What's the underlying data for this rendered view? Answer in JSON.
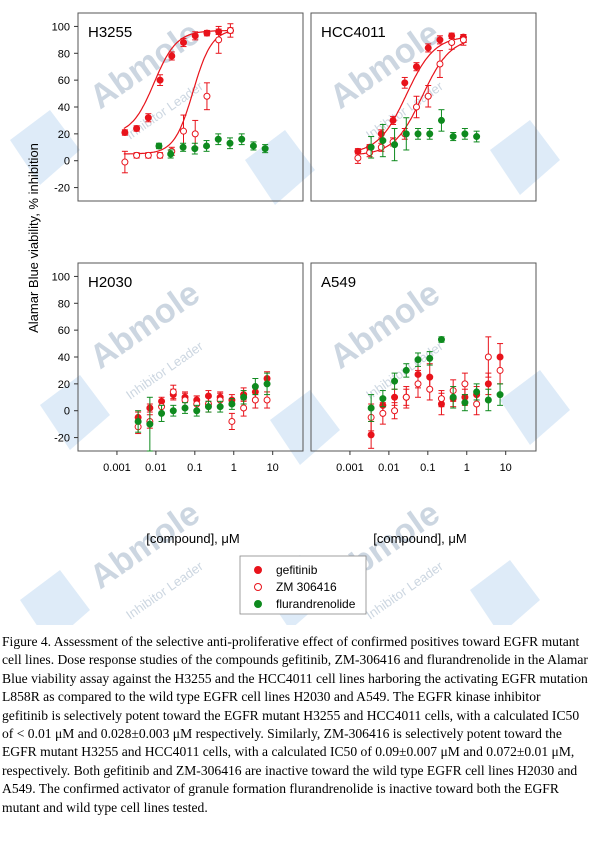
{
  "watermark": {
    "brand": "Abmole",
    "tagline": "Inhibitor Leader"
  },
  "colors": {
    "gefitinib": "#e8131b",
    "zm306416": "#e8131b",
    "flurandrenolide": "#0e8a1e",
    "fit": "#e8131b",
    "watermark": "#4a90d9"
  },
  "figure": {
    "ylabel": "Alamar Blue viability, % inhibition",
    "xlabel": "[compound], μM",
    "x_ticks": [
      "0.001",
      "0.01",
      "0.1",
      "1",
      "10"
    ],
    "y_ticks": [
      "-20",
      "0",
      "20",
      "40",
      "60",
      "80",
      "100"
    ],
    "legend": [
      {
        "label": "gefitinib",
        "marker": "filled"
      },
      {
        "label": "ZM 306416",
        "marker": "open"
      },
      {
        "label": "flurandrenolide",
        "marker": "filled-green"
      }
    ]
  },
  "chart_data": [
    {
      "type": "scatter",
      "title": "H3255",
      "xscale": "log",
      "xlim": [
        0.0001,
        60
      ],
      "ylim": [
        -30,
        110
      ],
      "series": [
        {
          "name": "gefitinib",
          "style": "filled",
          "color": "#e8131b",
          "x": [
            0.0016,
            0.0032,
            0.0064,
            0.0128,
            0.0256,
            0.0512,
            0.1024,
            0.2048,
            0.4096,
            0.8192
          ],
          "y": [
            21,
            24,
            32,
            60,
            78,
            88,
            93,
            95,
            96,
            97
          ],
          "err": [
            2,
            2,
            3,
            4,
            3,
            3,
            3,
            2,
            2,
            2
          ]
        },
        {
          "name": "ZM 306416",
          "style": "open",
          "color": "#e8131b",
          "x": [
            0.0016,
            0.0032,
            0.0064,
            0.0128,
            0.0256,
            0.0512,
            0.1024,
            0.2048,
            0.4096,
            0.8192
          ],
          "y": [
            -1,
            4,
            4,
            4,
            7,
            22,
            20,
            48,
            90,
            97
          ],
          "err": [
            8,
            2,
            2,
            2,
            3,
            12,
            10,
            10,
            10,
            5
          ]
        },
        {
          "name": "flurandrenolide",
          "style": "filled",
          "color": "#0e8a1e",
          "x": [
            0.012,
            0.024,
            0.05,
            0.1,
            0.2,
            0.4,
            0.8,
            1.6,
            3.2,
            6.4
          ],
          "y": [
            11,
            5,
            10,
            9,
            11,
            16,
            13,
            16,
            11,
            9
          ],
          "err": [
            2,
            3,
            3,
            4,
            4,
            4,
            4,
            4,
            3,
            3
          ]
        }
      ],
      "fits": [
        {
          "series": "gefitinib",
          "bottom": 19,
          "top": 97,
          "ic50": 0.009,
          "hill": 1.5
        },
        {
          "series": "ZM 306416",
          "bottom": 5,
          "top": 98,
          "ic50": 0.09,
          "hill": 1.8
        }
      ]
    },
    {
      "type": "scatter",
      "title": "HCC4011",
      "xscale": "log",
      "xlim": [
        0.0001,
        60
      ],
      "ylim": [
        -30,
        110
      ],
      "series": [
        {
          "name": "gefitinib",
          "style": "filled",
          "color": "#e8131b",
          "x": [
            0.0016,
            0.0032,
            0.0064,
            0.0128,
            0.0256,
            0.0512,
            0.1024,
            0.2048,
            0.4096,
            0.8192
          ],
          "y": [
            7,
            10,
            20,
            30,
            58,
            70,
            84,
            90,
            93,
            92
          ],
          "err": [
            2,
            2,
            3,
            3,
            4,
            3,
            3,
            3,
            2,
            2
          ]
        },
        {
          "name": "ZM 306416",
          "style": "open",
          "color": "#e8131b",
          "x": [
            0.0016,
            0.0032,
            0.0064,
            0.0128,
            0.0256,
            0.0512,
            0.1024,
            0.2048,
            0.4096,
            0.8192
          ],
          "y": [
            2,
            6,
            10,
            14,
            20,
            40,
            48,
            72,
            88,
            90
          ],
          "err": [
            4,
            3,
            3,
            3,
            4,
            8,
            8,
            10,
            5,
            4
          ]
        },
        {
          "name": "flurandrenolide",
          "style": "filled",
          "color": "#0e8a1e",
          "x": [
            0.0035,
            0.007,
            0.014,
            0.028,
            0.056,
            0.112,
            0.224,
            0.448,
            0.896,
            1.792
          ],
          "y": [
            10,
            15,
            12,
            20,
            20,
            20,
            30,
            18,
            20,
            18
          ],
          "err": [
            8,
            12,
            12,
            12,
            4,
            4,
            8,
            3,
            4,
            4
          ]
        }
      ],
      "fits": [
        {
          "series": "gefitinib",
          "bottom": 5,
          "top": 93,
          "ic50": 0.028,
          "hill": 1.2
        },
        {
          "series": "ZM 306416",
          "bottom": 4,
          "top": 92,
          "ic50": 0.072,
          "hill": 1.2
        }
      ]
    },
    {
      "type": "scatter",
      "title": "H2030",
      "xscale": "log",
      "xlim": [
        0.0001,
        60
      ],
      "ylim": [
        -30,
        110
      ],
      "series": [
        {
          "name": "gefitinib",
          "style": "filled",
          "color": "#e8131b",
          "x": [
            0.0035,
            0.007,
            0.014,
            0.028,
            0.056,
            0.112,
            0.224,
            0.448,
            0.896,
            1.792,
            3.584,
            7.168
          ],
          "y": [
            -5,
            2,
            7,
            12,
            10,
            8,
            11,
            10,
            8,
            12,
            14,
            24
          ],
          "err": [
            4,
            3,
            3,
            4,
            3,
            3,
            4,
            3,
            4,
            5,
            5,
            5
          ]
        },
        {
          "name": "ZM 306416",
          "style": "open",
          "color": "#e8131b",
          "x": [
            0.0035,
            0.007,
            0.014,
            0.028,
            0.056,
            0.112,
            0.224,
            0.448,
            0.896,
            1.792,
            3.584,
            7.168
          ],
          "y": [
            -12,
            -8,
            3,
            14,
            8,
            5,
            5,
            8,
            -8,
            2,
            8,
            8
          ],
          "err": [
            5,
            5,
            5,
            5,
            6,
            6,
            6,
            6,
            6,
            6,
            6,
            6
          ]
        },
        {
          "name": "flurandrenolide",
          "style": "filled",
          "color": "#0e8a1e",
          "x": [
            0.0035,
            0.007,
            0.014,
            0.028,
            0.056,
            0.112,
            0.224,
            0.448,
            0.896,
            1.792,
            3.584,
            7.168
          ],
          "y": [
            -8,
            -10,
            -2,
            0,
            2,
            0,
            3,
            3,
            5,
            10,
            18,
            20
          ],
          "err": [
            8,
            20,
            6,
            4,
            4,
            4,
            4,
            4,
            4,
            5,
            6,
            8
          ]
        }
      ]
    },
    {
      "type": "scatter",
      "title": "A549",
      "xscale": "log",
      "xlim": [
        0.0001,
        60
      ],
      "ylim": [
        -30,
        110
      ],
      "series": [
        {
          "name": "gefitinib",
          "style": "filled",
          "color": "#e8131b",
          "x": [
            0.0035,
            0.007,
            0.014,
            0.028,
            0.056,
            0.112,
            0.224,
            0.448,
            0.896,
            1.792,
            3.584,
            7.168
          ],
          "y": [
            -18,
            4,
            10,
            10,
            27,
            25,
            5,
            9,
            10,
            12,
            20,
            40
          ],
          "err": [
            10,
            6,
            6,
            6,
            10,
            10,
            8,
            6,
            6,
            6,
            8,
            10
          ]
        },
        {
          "name": "ZM 306416",
          "style": "open",
          "color": "#e8131b",
          "x": [
            0.0035,
            0.007,
            0.014,
            0.028,
            0.056,
            0.112,
            0.224,
            0.448,
            0.896,
            1.792,
            3.584,
            7.168
          ],
          "y": [
            -5,
            -2,
            0,
            10,
            20,
            16,
            9,
            15,
            20,
            5,
            40,
            30
          ],
          "err": [
            10,
            8,
            6,
            8,
            10,
            8,
            6,
            8,
            8,
            8,
            15,
            10
          ]
        },
        {
          "name": "flurandrenolide",
          "style": "filled",
          "color": "#0e8a1e",
          "x": [
            0.0035,
            0.007,
            0.014,
            0.028,
            0.056,
            0.112,
            0.224,
            0.448,
            0.896,
            1.792,
            3.584,
            7.168
          ],
          "y": [
            2,
            9,
            22,
            30,
            38,
            39,
            53,
            10,
            6,
            14,
            8,
            12
          ],
          "err": [
            10,
            6,
            6,
            5,
            5,
            5,
            2,
            8,
            6,
            6,
            8,
            8
          ]
        }
      ]
    }
  ],
  "caption": "Figure 4. Assessment of the selective anti-proliferative effect of confirmed positives toward EGFR mutant cell lines. Dose response studies of the compounds gefitinib, ZM-306416 and flurandrenolide in the Alamar Blue viability assay against the H3255 and the HCC4011 cell lines harboring the activating EGFR mutation L858R as compared to the wild type EGFR cell lines H2030 and A549. The EGFR kinase inhibitor gefitinib is selectively potent toward the EGFR mutant H3255 and HCC4011 cells, with a calculated IC50 of < 0.01 μM and 0.028±0.003 μM respectively. Similarly, ZM-306416 is selectively potent toward the EGFR mutant H3255 and HCC4011 cells, with a calculated IC50 of 0.09±0.007 μM and 0.072±0.01 μM, respectively. Both gefitinib and ZM-306416 are inactive toward the wild type EGFR cell lines H2030 and A549. The confirmed activator of granule formation flurandrenolide is inactive toward both the EGFR mutant and wild type cell lines tested."
}
